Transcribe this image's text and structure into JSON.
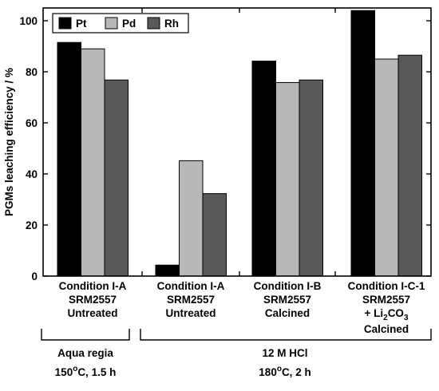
{
  "chart_data": {
    "type": "bar",
    "ylabel": "PGMs leaching efficiency / %",
    "ylim": [
      0,
      105
    ],
    "yticks": [
      "0",
      "20",
      "40",
      "60",
      "80",
      "100"
    ],
    "legend_position": "top-left",
    "categories": [
      {
        "lines": [
          "Condition I-A",
          "SRM2557",
          "Untreated"
        ]
      },
      {
        "lines": [
          "Condition I-A",
          "SRM2557",
          "Untreated"
        ]
      },
      {
        "lines": [
          "Condition I-B",
          "SRM2557",
          "Calcined"
        ]
      },
      {
        "lines": [
          "Condition I-C-1",
          "SRM2557",
          "+ Li",
          "2",
          "CO",
          "3",
          "Calcined"
        ]
      }
    ],
    "series": [
      {
        "name": "Pt",
        "color": "#000000",
        "values": [
          91.5,
          4.3,
          84.2,
          104.0
        ]
      },
      {
        "name": "Pd",
        "color": "#b8b8b8",
        "values": [
          89.0,
          45.2,
          75.8,
          85.0
        ]
      },
      {
        "name": "Rh",
        "color": "#595959",
        "values": [
          76.8,
          32.3,
          76.8,
          86.5
        ]
      }
    ],
    "groups": [
      {
        "label": "Aqua regia",
        "cond_prefix": "150",
        "cond_sup": "o",
        "cond_suffix": "C, 1.5 h"
      },
      {
        "label": "12 M HCl",
        "cond_prefix": "180",
        "cond_sup": "o",
        "cond_suffix": "C, 2 h"
      }
    ]
  }
}
